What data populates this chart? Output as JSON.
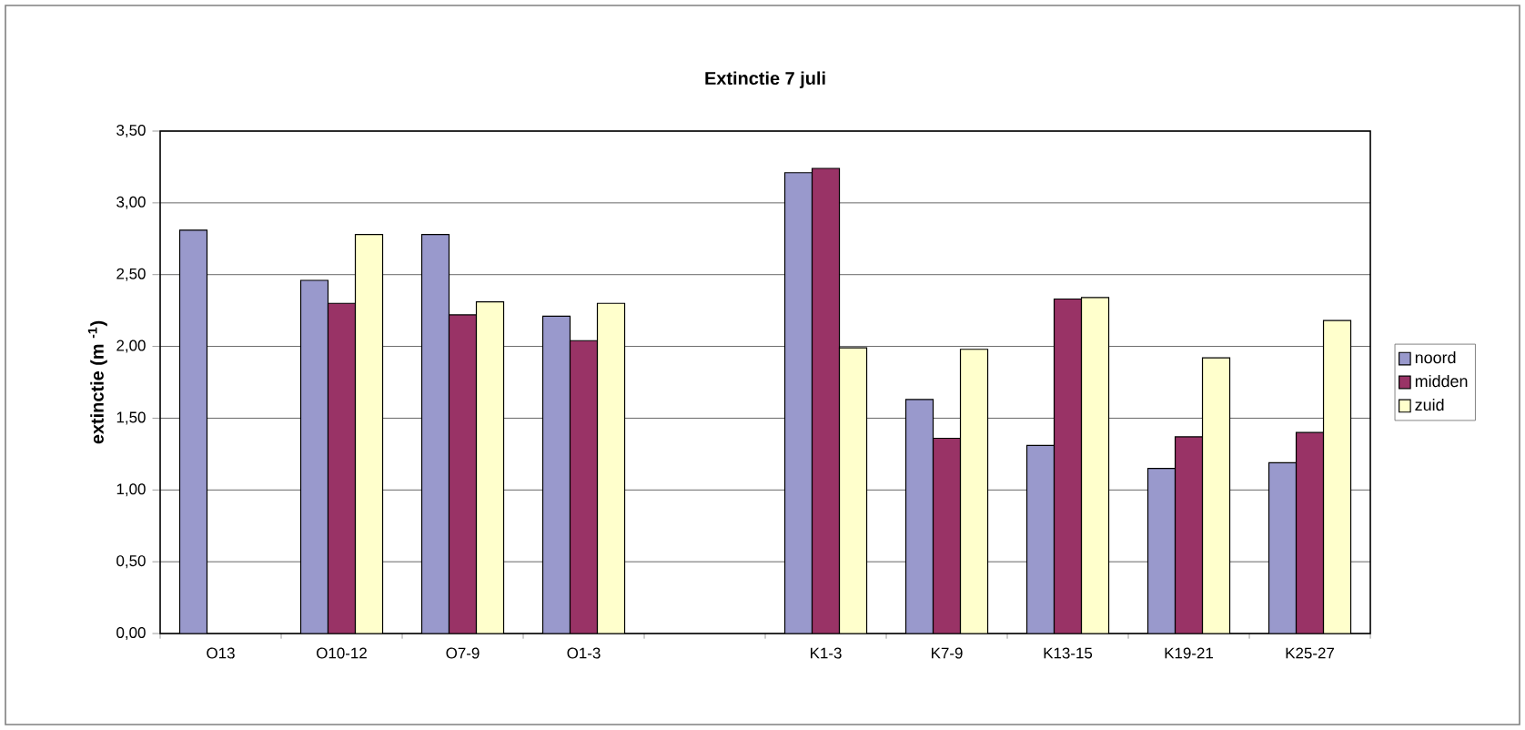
{
  "chart_data": {
    "type": "bar",
    "title": "Extinctie 7 juli",
    "ylabel": "extinctie (m $^{-1}$)",
    "categories": [
      "O13",
      "O10-12",
      "O7-9",
      "O1-3",
      null,
      "K1-3",
      "K7-9",
      "K13-15",
      "K19-21",
      "K25-27"
    ],
    "series": [
      {
        "name": "noord",
        "color": "#9999cc",
        "values": [
          2.81,
          2.46,
          2.78,
          2.21,
          null,
          3.21,
          1.63,
          1.31,
          1.15,
          1.19
        ]
      },
      {
        "name": "midden",
        "color": "#993366",
        "values": [
          null,
          2.3,
          2.22,
          2.04,
          null,
          3.24,
          1.36,
          2.33,
          1.37,
          1.4
        ]
      },
      {
        "name": "zuid",
        "color": "#ffffcc",
        "values": [
          null,
          2.78,
          2.31,
          2.3,
          null,
          1.99,
          1.98,
          2.34,
          1.92,
          2.18
        ]
      }
    ],
    "ylim": [
      0,
      3.5
    ],
    "yticks": [
      {
        "value": 0,
        "label": "0,00"
      },
      {
        "value": 0.5,
        "label": "0,50"
      },
      {
        "value": 1,
        "label": "1,00"
      },
      {
        "value": 1.5,
        "label": "1,50"
      },
      {
        "value": 2,
        "label": "2,00"
      },
      {
        "value": 2.5,
        "label": "2,50"
      },
      {
        "value": 3,
        "label": "3,00"
      },
      {
        "value": 3.5,
        "label": "3,50"
      }
    ],
    "grid": "y",
    "legend": "right"
  }
}
